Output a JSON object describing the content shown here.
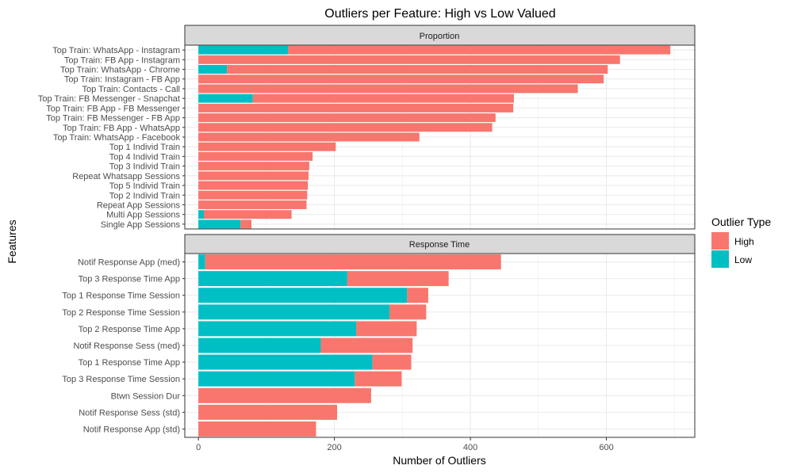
{
  "chart_data": {
    "type": "bar",
    "orientation": "horizontal",
    "stacked": true,
    "title": "Outliers per Feature: High vs Low Valued",
    "xlabel": "Number of Outliers",
    "ylabel": "Features",
    "xlim": [
      -20,
      730
    ],
    "xticks": [
      0,
      200,
      400,
      600
    ],
    "xtick_labels": [
      "0",
      "200",
      "400",
      "600"
    ],
    "grid": true,
    "legend": {
      "title": "Outlier Type",
      "placement": "right",
      "entries": [
        {
          "name": "High",
          "color": "#F8766D"
        },
        {
          "name": "Low",
          "color": "#00BFC4"
        }
      ]
    },
    "panels": [
      {
        "name": "Proportion",
        "categories": [
          "Top Train: WhatsApp - Instagram",
          "Top Train: FB App - Instagram",
          "Top Train: WhatsApp - Chrome",
          "Top Train: Instagram - FB App",
          "Top Train: Contacts - Call",
          "Top Train: FB Messenger - Snapchat",
          "Top Train: FB App - FB Messenger",
          "Top Train: FB Messenger - FB App",
          "Top Train: FB App - WhatsApp",
          "Top Train: WhatsApp - Facebook",
          "Top 1 Individ Train",
          "Top 4 Individ Train",
          "Top 3 Individ Train",
          "Repeat Whatsapp Sessions",
          "Top 5 Individ Train",
          "Top 2 Individ Train",
          "Repeat App Sessions",
          "Multi App Sessions",
          "Single App Sessions"
        ],
        "series": [
          {
            "name": "Low",
            "values": [
              132,
              0,
              42,
              0,
              0,
              80,
              0,
              0,
              0,
              0,
              0,
              0,
              0,
              0,
              0,
              0,
              0,
              8,
              62
            ]
          },
          {
            "name": "High",
            "values": [
              562,
              620,
              560,
              596,
              558,
              384,
              463,
              437,
              432,
              325,
              202,
              168,
              163,
              162,
              161,
              160,
              159,
              129,
              16
            ]
          }
        ]
      },
      {
        "name": "Response Time",
        "categories": [
          "Notif Response App (med)",
          "Top 3 Response Time App",
          "Top 1 Response Time Session",
          "Top 2 Response Time Session",
          "Top 2 Response Time App",
          "Notif Response Sess (med)",
          "Top 1 Response Time App",
          "Top 3 Response Time Session",
          "Btwn Session Dur",
          "Notif Response Sess (std)",
          "Notif Response App (std)"
        ],
        "series": [
          {
            "name": "Low",
            "values": [
              10,
              219,
              307,
              281,
              232,
              180,
              256,
              230,
              0,
              0,
              0
            ]
          },
          {
            "name": "High",
            "values": [
              435,
              149,
              31,
              54,
              89,
              135,
              57,
              69,
              254,
              204,
              173
            ]
          }
        ]
      }
    ]
  }
}
